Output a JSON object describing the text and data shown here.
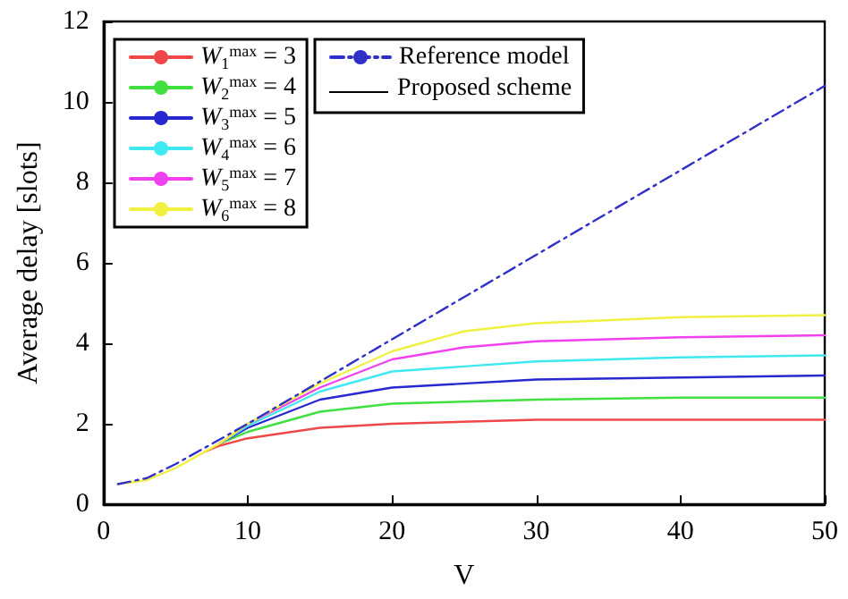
{
  "chart_data": {
    "type": "line",
    "xlabel": "V",
    "ylabel": "Average delay [slots]",
    "xlim": [
      0,
      50
    ],
    "xticks": [
      0,
      10,
      20,
      30,
      40,
      50
    ],
    "ylim": [
      0,
      12
    ],
    "yticks": [
      0,
      2,
      4,
      6,
      8,
      10,
      12
    ],
    "grid": false,
    "legend": "top left",
    "marker": "none",
    "annotations": [
      "Proposed scheme"
    ],
    "series": [
      {
        "name": "Reference model",
        "color": "#3030c8",
        "line_style": "dashed",
        "x": [
          1,
          3,
          5,
          10,
          20,
          30,
          40,
          50
        ],
        "values": [
          0.5,
          0.65,
          1.0,
          2.0,
          4.1,
          6.2,
          8.3,
          10.4
        ]
      },
      {
        "name": "W$_{1}$$^{max}$ = 3",
        "color": "#f04848",
        "line_style": "solid",
        "x": [
          7,
          8,
          10,
          15,
          20,
          30,
          40,
          50
        ],
        "values": [
          1.3,
          1.45,
          1.64,
          1.9,
          2.0,
          2.1,
          2.1,
          2.1
        ]
      },
      {
        "name": "W$_{2}$$^{max}$ = 4",
        "color": "#40e040",
        "line_style": "solid",
        "x": [
          8,
          10,
          15,
          20,
          30,
          40,
          50
        ],
        "values": [
          1.5,
          1.8,
          2.3,
          2.5,
          2.6,
          2.65,
          2.65
        ]
      },
      {
        "name": "W$_{3}$$^{max}$ = 5",
        "color": "#2828d0",
        "line_style": "solid",
        "x": [
          8,
          10,
          15,
          20,
          30,
          40,
          50
        ],
        "values": [
          1.5,
          1.9,
          2.6,
          2.9,
          3.1,
          3.15,
          3.2
        ]
      },
      {
        "name": "W$_{4}$$^{max}$ = 6",
        "color": "#40e8f0",
        "line_style": "solid",
        "x": [
          8,
          10,
          15,
          20,
          30,
          40,
          50
        ],
        "values": [
          1.5,
          1.95,
          2.8,
          3.3,
          3.55,
          3.65,
          3.7
        ]
      },
      {
        "name": "W$_{5}$$^{max}$ = 7",
        "color": "#f040f0",
        "line_style": "solid",
        "x": [
          8,
          10,
          15,
          20,
          25,
          30,
          40,
          50
        ],
        "values": [
          1.5,
          2.0,
          2.9,
          3.6,
          3.9,
          4.05,
          4.15,
          4.2
        ]
      },
      {
        "name": "W$_{6}$$^{max}$ = 8",
        "color": "#f0f040",
        "line_style": "solid",
        "x": [
          1,
          3,
          5,
          7,
          8,
          10,
          15,
          20,
          25,
          30,
          40,
          50
        ],
        "values": [
          0.5,
          0.6,
          0.9,
          1.3,
          1.5,
          2.0,
          3.0,
          3.8,
          4.3,
          4.5,
          4.65,
          4.7
        ]
      }
    ]
  }
}
